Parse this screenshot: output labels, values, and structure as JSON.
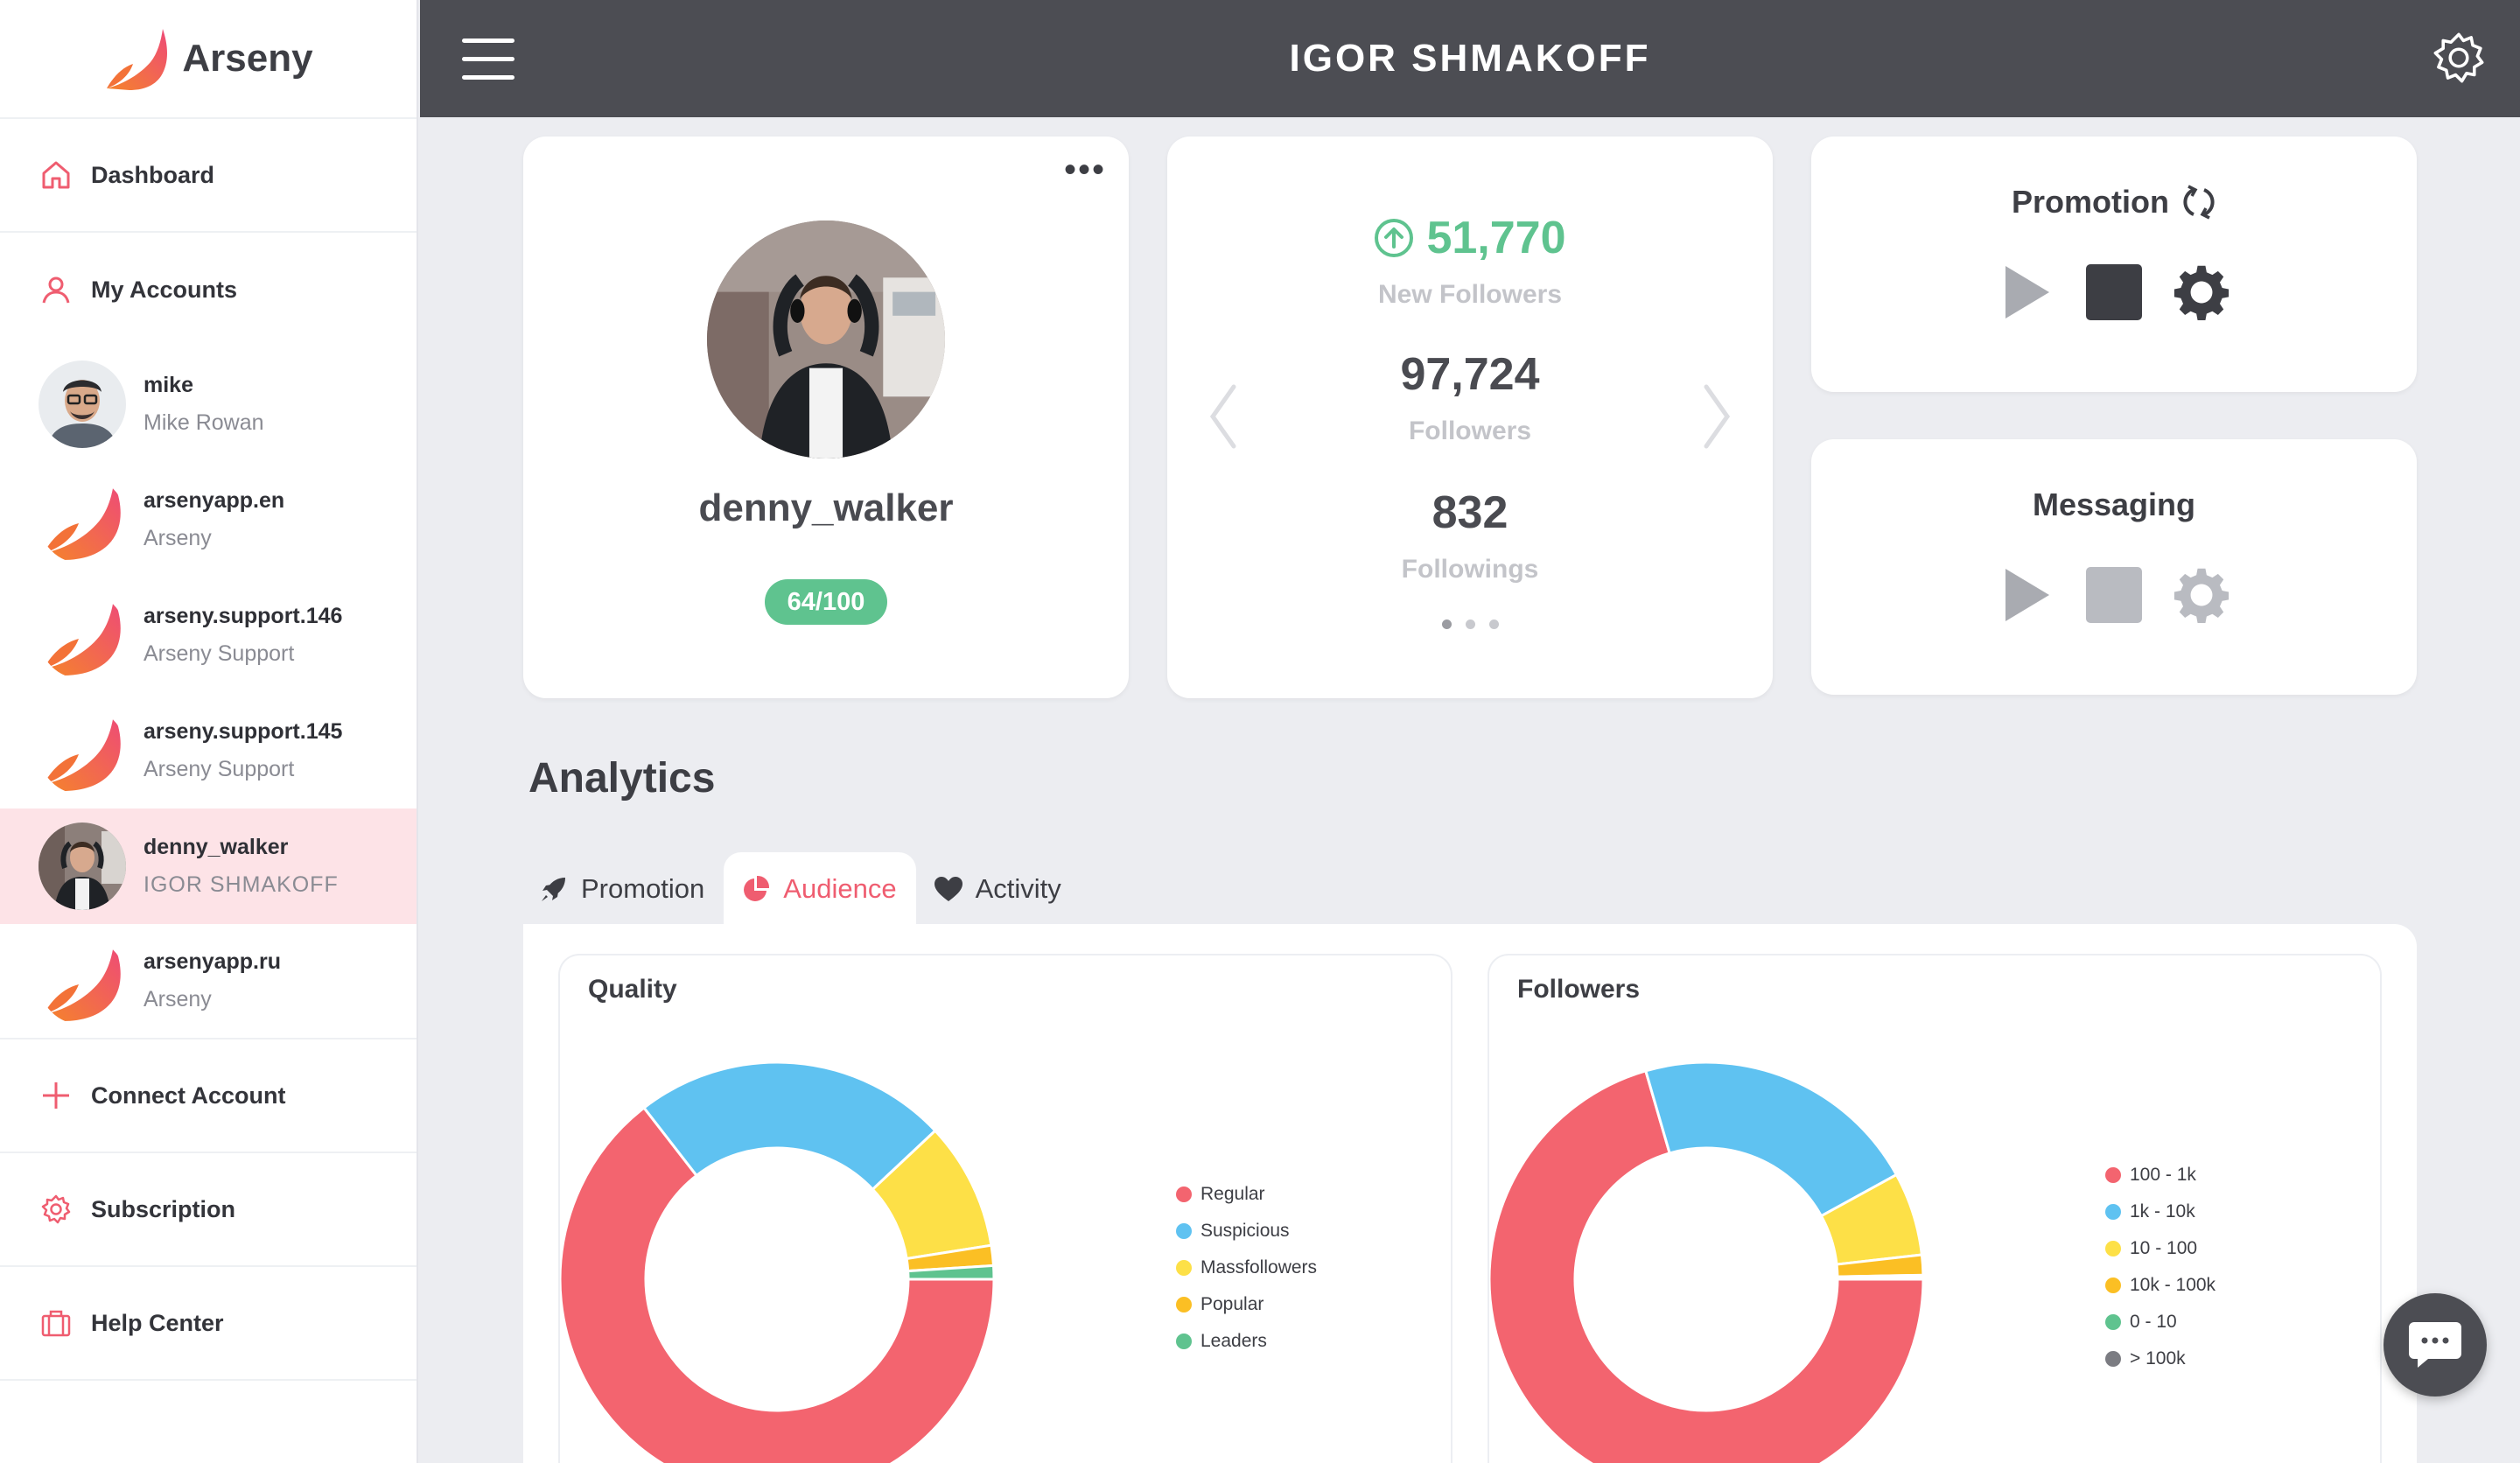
{
  "brand": {
    "name": "Arseny"
  },
  "nav": {
    "dashboard": "Dashboard",
    "my_accounts": "My Accounts",
    "connect_account": "Connect Account",
    "subscription": "Subscription",
    "help_center": "Help Center"
  },
  "accounts": [
    {
      "username": "mike",
      "name": "Mike Rowan",
      "active": false
    },
    {
      "username": "arsenyapp.en",
      "name": "Arseny",
      "active": false
    },
    {
      "username": "arseny.support.146",
      "name": "Arseny Support",
      "active": false
    },
    {
      "username": "arseny.support.145",
      "name": "Arseny Support",
      "active": false
    },
    {
      "username": "denny_walker",
      "name": "IGOR SHMAKOFF",
      "active": true
    },
    {
      "username": "arsenyapp.ru",
      "name": "Arseny",
      "active": false
    }
  ],
  "header": {
    "title": "IGOR SHMAKOFF"
  },
  "profile": {
    "username": "denny_walker",
    "score": "64/100"
  },
  "stats": {
    "new_followers": "51,770",
    "new_followers_label": "New Followers",
    "followers": "97,724",
    "followers_label": "Followers",
    "followings": "832",
    "followings_label": "Followings"
  },
  "promotion": {
    "title": "Promotion"
  },
  "messaging": {
    "title": "Messaging"
  },
  "analytics": {
    "title": "Analytics",
    "tabs": [
      {
        "label": "Promotion",
        "icon": "rocket-icon"
      },
      {
        "label": "Audience",
        "icon": "pie-chart-icon",
        "active": true
      },
      {
        "label": "Activity",
        "icon": "heart-icon"
      }
    ]
  },
  "colors": {
    "accent": "#ef5d70",
    "green": "#5fc38f",
    "header_bg": "#4c4d53"
  },
  "chart_data": [
    {
      "type": "pie",
      "title": "Quality",
      "donut": true,
      "categories": [
        "Regular",
        "Suspicious",
        "Massfollowers",
        "Popular",
        "Leaders"
      ],
      "values": [
        64.5,
        23.5,
        9.5,
        1.5,
        1.0
      ],
      "colors": [
        "#f3646f",
        "#5fc2f1",
        "#fde047",
        "#fbbf24",
        "#5fc38f"
      ],
      "legend": "right"
    },
    {
      "type": "pie",
      "title": "Followers",
      "donut": true,
      "categories": [
        "100 - 1k",
        "1k - 10k",
        "10 - 100",
        "10k - 100k",
        "0 - 10",
        "> 100k"
      ],
      "values": [
        70.5,
        21.5,
        6.2,
        1.5,
        0.2,
        0.1
      ],
      "colors": [
        "#f3646f",
        "#5fc2f1",
        "#fde047",
        "#fbbf24",
        "#5fc38f",
        "#7b7c82"
      ],
      "legend": "right"
    }
  ]
}
